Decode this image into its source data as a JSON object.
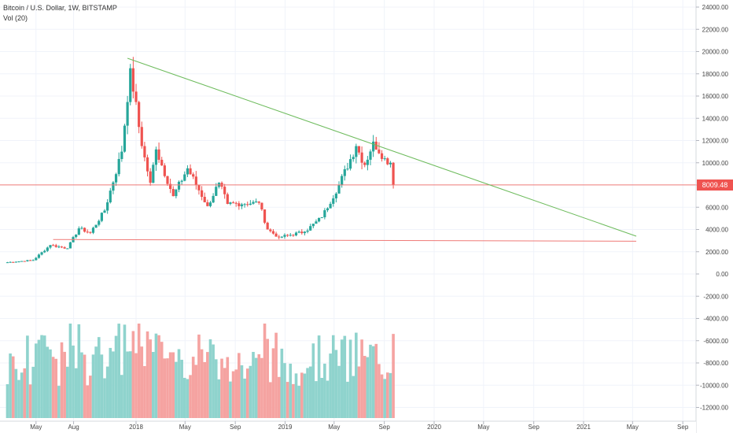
{
  "legend": {
    "symbol": "Bitcoin / U.S. Dollar, 1W, BITSTAMP",
    "volume": "Vol (20)"
  },
  "last_price_label": "8009.48",
  "colors": {
    "up": "#26a69a",
    "down": "#ef5350",
    "vol_up": "#8fd3cd",
    "vol_down": "#f5a3a1",
    "trendline": "#6dbb5c",
    "hline": "#ef7a77",
    "axis_text": "#444444",
    "grid": "#f0f3fa"
  },
  "chart_data": {
    "type": "candlestick",
    "title": "Bitcoin / U.S. Dollar, 1W, BITSTAMP",
    "ylim": [
      -13000,
      24500
    ],
    "y_ticks": [
      24000,
      22000,
      20000,
      18000,
      16000,
      14000,
      12000,
      10000,
      8000,
      6000,
      4000,
      2000,
      0,
      -2000,
      -4000,
      -6000,
      -8000,
      -10000,
      -12000
    ],
    "y_tick_labels": [
      "24000.00",
      "22000.00",
      "20000.00",
      "18000.00",
      "16000.00",
      "14000.00",
      "12000.00",
      "10000.00",
      "8000.00",
      "6000.00",
      "4000.00",
      "2000.00",
      "0.00",
      "-2000.00",
      "-4000.00",
      "-6000.00",
      "-8000.00",
      "-10000.00",
      "-12000.00"
    ],
    "x_tick_labels": [
      "May",
      "Aug",
      "2018",
      "May",
      "Sep",
      "2019",
      "May",
      "Sep",
      "2020",
      "May",
      "Sep",
      "2021",
      "May",
      "Sep"
    ],
    "x_tick_dates": [
      "2017-05-01",
      "2017-08-01",
      "2018-01-01",
      "2018-05-01",
      "2018-09-01",
      "2019-01-01",
      "2019-05-01",
      "2019-09-01",
      "2020-01-01",
      "2020-05-01",
      "2020-09-01",
      "2021-01-01",
      "2021-05-01",
      "2021-09-01"
    ],
    "key_closes": [
      {
        "date": "2017-02-20",
        "close": 1050
      },
      {
        "date": "2017-04-24",
        "close": 1250
      },
      {
        "date": "2017-06-05",
        "close": 2600
      },
      {
        "date": "2017-07-17",
        "close": 2300
      },
      {
        "date": "2017-08-14",
        "close": 4100
      },
      {
        "date": "2017-09-11",
        "close": 3700
      },
      {
        "date": "2017-10-16",
        "close": 5700
      },
      {
        "date": "2017-11-27",
        "close": 11000
      },
      {
        "date": "2017-12-18",
        "close": 18500
      },
      {
        "date": "2018-01-15",
        "close": 11500
      },
      {
        "date": "2018-02-05",
        "close": 8200
      },
      {
        "date": "2018-02-19",
        "close": 11200
      },
      {
        "date": "2018-04-02",
        "close": 7000
      },
      {
        "date": "2018-05-07",
        "close": 9500
      },
      {
        "date": "2018-06-25",
        "close": 6100
      },
      {
        "date": "2018-07-23",
        "close": 8200
      },
      {
        "date": "2018-08-13",
        "close": 6300
      },
      {
        "date": "2018-10-29",
        "close": 6400
      },
      {
        "date": "2018-11-19",
        "close": 4000
      },
      {
        "date": "2018-12-17",
        "close": 3300
      },
      {
        "date": "2019-02-18",
        "close": 3800
      },
      {
        "date": "2019-04-01",
        "close": 5100
      },
      {
        "date": "2019-05-13",
        "close": 8000
      },
      {
        "date": "2019-06-24",
        "close": 11500
      },
      {
        "date": "2019-07-15",
        "close": 9800
      },
      {
        "date": "2019-08-05",
        "close": 11900
      },
      {
        "date": "2019-09-02",
        "close": 10400
      },
      {
        "date": "2019-09-16",
        "close": 10000
      },
      {
        "date": "2019-09-23",
        "close": 8009.48
      }
    ],
    "last_close": 8009.48,
    "trendline": {
      "from": {
        "date": "2017-12-11",
        "price": 19400
      },
      "to": {
        "date": "2021-05-10",
        "price": 3400
      }
    },
    "horizontal_lines": [
      {
        "price": 8009.48,
        "from_date": "2017-01-01"
      },
      {
        "from": {
          "date": "2017-06-12",
          "price": 3100
        },
        "to": {
          "date": "2021-05-10",
          "price": 2950
        }
      }
    ]
  }
}
